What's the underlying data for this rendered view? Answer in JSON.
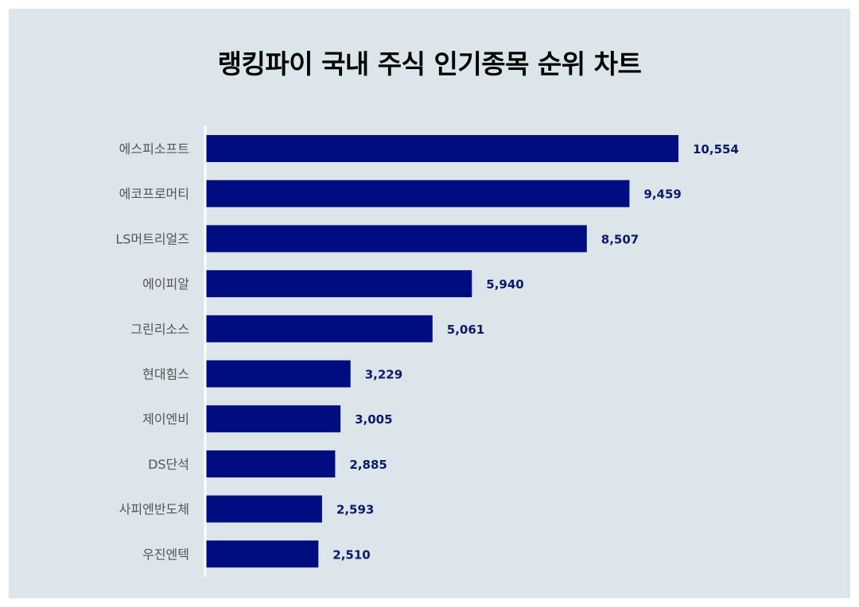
{
  "title": "랭킹파이 국내 주식 인기종목 순위 차트",
  "colors": {
    "background": "#dbe5ea",
    "bar": "#000d80",
    "value_text": "#0b1a6e",
    "category_text": "#555555",
    "axis_line": "#ffffff"
  },
  "chart_data": {
    "type": "bar",
    "orientation": "horizontal",
    "title": "랭킹파이 국내 주식 인기종목 순위 차트",
    "xlabel": "",
    "ylabel": "",
    "categories": [
      "에스피소프트",
      "에코프로머티",
      "LS머트리얼즈",
      "에이피알",
      "그린리소스",
      "현대힘스",
      "제이엔비",
      "DS단석",
      "사피엔반도체",
      "우진엔텍"
    ],
    "values": [
      10554,
      9459,
      8507,
      5940,
      5061,
      3229,
      3005,
      2885,
      2593,
      2510
    ],
    "value_labels": [
      "10,554",
      "9,459",
      "8,507",
      "5,940",
      "5,061",
      "3,229",
      "3,005",
      "2,885",
      "2,593",
      "2,510"
    ],
    "xlim": [
      0,
      12000
    ],
    "grid": false,
    "legend": "none"
  }
}
